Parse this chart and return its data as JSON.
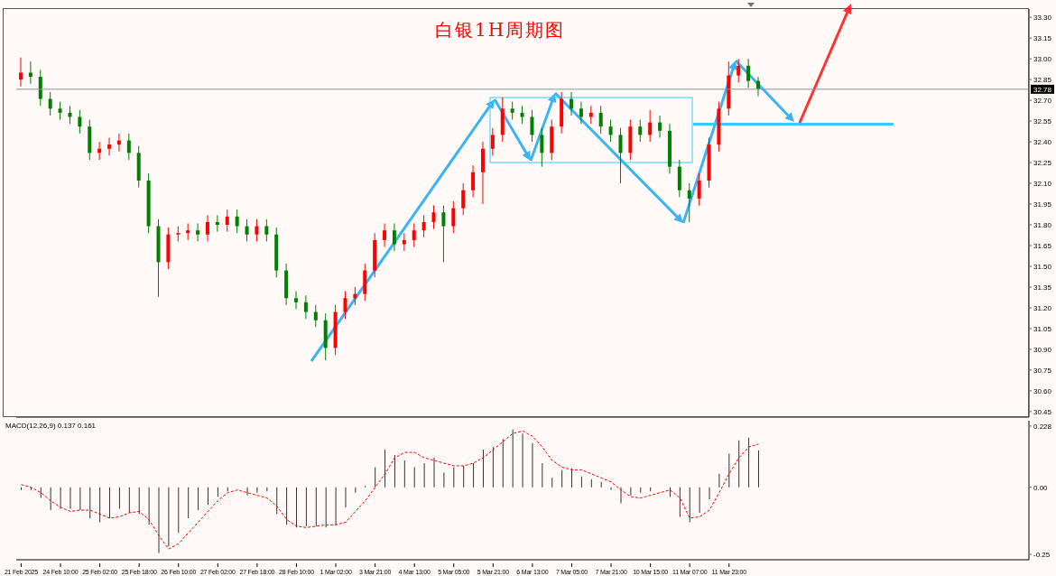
{
  "chart_data": [
    {
      "type": "candlestick",
      "title": "白银1H周期图",
      "categories": [
        null,
        null,
        null,
        null,
        null,
        null,
        null,
        null,
        null,
        null,
        null,
        null,
        null,
        null,
        null,
        null,
        null,
        null,
        null,
        null,
        null,
        null,
        null,
        null,
        null,
        null,
        null,
        null,
        null,
        null,
        null,
        null,
        null,
        null,
        null,
        null,
        null,
        null,
        null,
        null,
        null,
        null,
        null,
        null,
        null,
        null,
        null,
        null,
        null,
        null,
        null,
        null,
        null,
        null,
        null,
        null,
        null,
        null,
        null,
        null,
        null,
        null,
        null,
        null,
        null,
        null,
        null,
        null,
        null,
        null,
        null,
        null,
        null,
        null,
        null,
        null,
        null,
        null,
        null,
        null,
        null,
        null,
        null,
        null,
        null,
        null,
        null,
        null,
        null,
        null,
        null,
        null,
        null,
        null,
        null,
        null,
        null,
        null,
        null,
        null,
        null,
        null,
        null
      ],
      "ohlc": [
        [
          32.85,
          33.01,
          32.8,
          32.9
        ],
        [
          32.9,
          32.98,
          32.82,
          32.87
        ],
        [
          32.87,
          32.92,
          32.66,
          32.71
        ],
        [
          32.71,
          32.76,
          32.59,
          32.64
        ],
        [
          32.64,
          32.69,
          32.56,
          32.61
        ],
        [
          32.61,
          32.66,
          32.53,
          32.58
        ],
        [
          32.58,
          32.63,
          32.46,
          32.51
        ],
        [
          32.51,
          32.56,
          32.27,
          32.32
        ],
        [
          32.32,
          32.4,
          32.27,
          32.35
        ],
        [
          32.35,
          32.43,
          32.3,
          32.38
        ],
        [
          32.38,
          32.46,
          32.33,
          32.41
        ],
        [
          32.41,
          32.46,
          32.27,
          32.32
        ],
        [
          32.32,
          32.37,
          32.07,
          32.12
        ],
        [
          32.12,
          32.17,
          31.74,
          31.79
        ],
        [
          31.79,
          31.84,
          31.28,
          31.53
        ],
        [
          31.53,
          31.78,
          31.48,
          31.73
        ],
        [
          31.73,
          31.79,
          31.68,
          31.74
        ],
        [
          31.74,
          31.81,
          31.69,
          31.76
        ],
        [
          31.76,
          31.81,
          31.68,
          31.73
        ],
        [
          31.73,
          31.87,
          31.68,
          31.82
        ],
        [
          31.82,
          31.87,
          31.75,
          31.8
        ],
        [
          31.8,
          31.91,
          31.75,
          31.86
        ],
        [
          31.86,
          31.91,
          31.74,
          31.79
        ],
        [
          31.79,
          31.84,
          31.68,
          31.73
        ],
        [
          31.73,
          31.84,
          31.68,
          31.79
        ],
        [
          31.79,
          31.84,
          31.68,
          31.73
        ],
        [
          31.73,
          31.78,
          31.42,
          31.47
        ],
        [
          31.47,
          31.52,
          31.22,
          31.27
        ],
        [
          31.27,
          31.32,
          31.19,
          31.24
        ],
        [
          31.24,
          31.29,
          31.12,
          31.17
        ],
        [
          31.17,
          31.22,
          31.06,
          31.11
        ],
        [
          31.11,
          31.16,
          30.82,
          30.91
        ],
        [
          30.91,
          31.22,
          30.86,
          31.17
        ],
        [
          31.17,
          31.32,
          31.12,
          31.27
        ],
        [
          31.27,
          31.35,
          31.22,
          31.3
        ],
        [
          31.3,
          31.52,
          31.25,
          31.47
        ],
        [
          31.47,
          31.74,
          31.42,
          31.69
        ],
        [
          31.69,
          31.81,
          31.64,
          31.76
        ],
        [
          31.76,
          31.81,
          31.61,
          31.66
        ],
        [
          31.66,
          31.74,
          31.61,
          31.69
        ],
        [
          31.69,
          31.81,
          31.64,
          31.76
        ],
        [
          31.76,
          31.87,
          31.71,
          31.82
        ],
        [
          31.82,
          31.94,
          31.77,
          31.89
        ],
        [
          31.89,
          31.94,
          31.53,
          31.79
        ],
        [
          31.79,
          31.97,
          31.74,
          31.92
        ],
        [
          31.92,
          32.1,
          31.87,
          32.05
        ],
        [
          32.05,
          32.23,
          32.0,
          32.18
        ],
        [
          32.18,
          32.4,
          31.95,
          32.35
        ],
        [
          32.35,
          32.5,
          32.3,
          32.45
        ],
        [
          32.45,
          32.72,
          32.4,
          32.64
        ],
        [
          32.64,
          32.69,
          32.56,
          32.61
        ],
        [
          32.61,
          32.66,
          32.53,
          32.58
        ],
        [
          32.58,
          32.63,
          32.4,
          32.45
        ],
        [
          32.45,
          32.5,
          32.22,
          32.32
        ],
        [
          32.32,
          32.56,
          32.27,
          32.51
        ],
        [
          32.51,
          32.76,
          32.46,
          32.71
        ],
        [
          32.71,
          32.76,
          32.59,
          32.64
        ],
        [
          32.64,
          32.69,
          32.53,
          32.58
        ],
        [
          32.58,
          32.66,
          32.53,
          32.61
        ],
        [
          32.61,
          32.66,
          32.46,
          32.51
        ],
        [
          32.51,
          32.56,
          32.4,
          32.45
        ],
        [
          32.45,
          32.5,
          32.1,
          32.32
        ],
        [
          32.32,
          32.56,
          32.27,
          32.51
        ],
        [
          32.51,
          32.56,
          32.4,
          32.45
        ],
        [
          32.45,
          32.63,
          32.4,
          32.54
        ],
        [
          32.54,
          32.59,
          32.43,
          32.48
        ],
        [
          32.48,
          32.53,
          32.17,
          32.22
        ],
        [
          32.22,
          32.27,
          32.0,
          32.05
        ],
        [
          32.05,
          32.1,
          31.82,
          31.99
        ],
        [
          31.99,
          32.17,
          31.94,
          32.12
        ],
        [
          32.12,
          32.43,
          32.07,
          32.38
        ],
        [
          32.38,
          32.69,
          32.33,
          32.64
        ],
        [
          32.64,
          32.98,
          32.59,
          32.88
        ],
        [
          32.88,
          33.0,
          32.83,
          32.95
        ],
        [
          32.95,
          33.0,
          32.79,
          32.84
        ],
        [
          32.84,
          32.87,
          32.73,
          32.78
        ],
        null,
        null,
        null,
        null,
        null,
        null,
        null,
        null,
        null,
        null,
        null,
        null,
        null,
        null,
        null,
        null,
        null,
        null,
        null,
        null,
        null,
        null,
        null,
        null,
        null,
        null,
        null
      ],
      "colors": [
        "#ff0000",
        "#008000",
        "#008000",
        "#008000",
        "#008000",
        "#008000",
        "#008000",
        "#008000",
        "#ff0000",
        "#ff0000",
        "#ff0000",
        "#008000",
        "#008000",
        "#008000",
        "#008000",
        "#ff0000",
        "#ff0000",
        "#ff0000",
        "#008000",
        "#ff0000",
        "#008000",
        "#ff0000",
        "#008000",
        "#008000",
        "#ff0000",
        "#008000",
        "#008000",
        "#008000",
        "#008000",
        "#008000",
        "#008000",
        "#008000",
        "#ff0000",
        "#ff0000",
        "#ff0000",
        "#ff0000",
        "#ff0000",
        "#ff0000",
        "#008000",
        "#ff0000",
        "#ff0000",
        "#ff0000",
        "#ff0000",
        "#008000",
        "#ff0000",
        "#ff0000",
        "#ff0000",
        "#ff0000",
        "#ff0000",
        "#ff0000",
        "#008000",
        "#008000",
        "#008000",
        "#008000",
        "#ff0000",
        "#ff0000",
        "#008000",
        "#008000",
        "#ff0000",
        "#008000",
        "#008000",
        "#008000",
        "#ff0000",
        "#008000",
        "#ff0000",
        "#008000",
        "#008000",
        "#008000",
        "#008000",
        "#ff0000",
        "#ff0000",
        "#ff0000",
        "#ff0000",
        "#ff0000",
        "#008000",
        "#008000",
        null,
        null,
        null,
        null,
        null,
        null,
        null,
        null,
        null,
        null,
        null,
        null,
        null,
        null,
        null,
        null,
        null,
        null,
        null,
        null,
        null,
        null,
        null,
        null,
        null,
        null,
        null
      ],
      "ylim": [
        30.41,
        33.36
      ],
      "yticks": [
        {
          "value": 30.45,
          "label": "30.45"
        },
        {
          "value": 30.6,
          "label": "30.60"
        },
        {
          "value": 30.75,
          "label": "30.75"
        },
        {
          "value": 30.9,
          "label": "30.90"
        },
        {
          "value": 31.05,
          "label": "31.05"
        },
        {
          "value": 31.2,
          "label": "31.20"
        },
        {
          "value": 31.35,
          "label": "31.35"
        },
        {
          "value": 31.5,
          "label": "31.50"
        },
        {
          "value": 31.65,
          "label": "31.65"
        },
        {
          "value": 31.8,
          "label": "31.80"
        },
        {
          "value": 31.95,
          "label": "31.95"
        },
        {
          "value": 32.1,
          "label": "32.10"
        },
        {
          "value": 32.25,
          "label": "32.25"
        },
        {
          "value": 32.4,
          "label": "32.40"
        },
        {
          "value": 32.55,
          "label": "32.55"
        },
        {
          "value": 32.7,
          "label": "32.70"
        },
        {
          "value": 32.85,
          "label": "32.85"
        },
        {
          "value": 33,
          "label": "33.00"
        },
        {
          "value": 33.15,
          "label": "33.15"
        },
        {
          "value": 33.3,
          "label": "33.30"
        }
      ],
      "ref_lines": [
        {
          "axis": "y",
          "value": 32.78,
          "label": "32.78",
          "color": "#8a949c"
        }
      ],
      "tick_labels": "y"
    },
    {
      "type": "bar",
      "title": "MACD(12,26,9) 0.137 0.161",
      "categories": [
        "21 Feb 2025",
        null,
        null,
        null,
        "24 Feb 10:00",
        null,
        null,
        null,
        "25 Feb 02:00",
        null,
        null,
        null,
        "25 Feb 18:00",
        null,
        null,
        null,
        "26 Feb 10:00",
        null,
        null,
        null,
        "27 Feb 02:00",
        null,
        null,
        null,
        "27 Feb 18:00",
        null,
        null,
        null,
        "28 Feb 10:00",
        null,
        null,
        null,
        "1 Mar 02:00",
        null,
        null,
        null,
        "3 Mar 21:00",
        null,
        null,
        null,
        "4 Mar 13:00",
        null,
        null,
        null,
        "5 Mar 05:00",
        null,
        null,
        null,
        "5 Mar 21:00",
        null,
        null,
        null,
        "6 Mar 13:00",
        null,
        null,
        null,
        "7 Mar 05:00",
        null,
        null,
        null,
        "7 Mar 21:00",
        null,
        null,
        null,
        "10 Mar 15:00",
        null,
        null,
        null,
        "11 Mar 07:00",
        null,
        null,
        null,
        "11 Mar 23:00",
        null,
        null,
        null,
        null,
        null,
        null,
        null,
        null,
        null,
        null,
        null,
        null,
        null,
        null,
        null,
        null,
        null,
        null,
        null,
        null,
        null,
        null,
        null,
        null,
        null,
        null,
        null,
        null,
        null,
        null
      ],
      "series": [
        {
          "type": "bar",
          "color": "#333333",
          "values": [
            -0.01,
            -0.01,
            -0.04,
            -0.085,
            -0.08,
            -0.08,
            -0.085,
            -0.115,
            -0.13,
            -0.115,
            -0.08,
            -0.095,
            -0.1,
            -0.14,
            -0.245,
            -0.22,
            -0.17,
            -0.115,
            -0.085,
            -0.065,
            -0.035,
            -0.015,
            null,
            -0.03,
            -0.02,
            -0.015,
            -0.1,
            -0.14,
            -0.15,
            -0.145,
            -0.145,
            -0.15,
            -0.14,
            -0.075,
            -0.02,
            0.005,
            0.075,
            0.14,
            0.12,
            0.1,
            0.075,
            0.09,
            0.11,
            0.055,
            0.075,
            0.08,
            0.09,
            0.14,
            0.15,
            0.18,
            0.215,
            0.2,
            0.165,
            0.09,
            0.035,
            0.065,
            0.07,
            0.04,
            0.03,
            0.02,
            -0.01,
            -0.06,
            -0.03,
            -0.02,
            -0.015,
            0,
            -0.035,
            -0.11,
            -0.13,
            -0.095,
            -0.045,
            0.05,
            0.125,
            0.175,
            0.185,
            0.137,
            null,
            null,
            null,
            null,
            null,
            null,
            null,
            null,
            null,
            null,
            null,
            null,
            null,
            null,
            null,
            null,
            null,
            null,
            null,
            null,
            null,
            null,
            null,
            null,
            null,
            null,
            null
          ]
        },
        {
          "type": "line",
          "color": "#ff0000",
          "values": [
            0.01,
            0,
            -0.02,
            -0.05,
            -0.075,
            -0.09,
            -0.085,
            -0.085,
            -0.1,
            -0.115,
            -0.11,
            -0.095,
            -0.09,
            -0.12,
            -0.18,
            -0.23,
            -0.21,
            -0.17,
            -0.13,
            -0.09,
            -0.05,
            -0.02,
            -0.01,
            -0.02,
            -0.03,
            -0.04,
            -0.07,
            -0.12,
            -0.145,
            -0.15,
            -0.145,
            -0.14,
            -0.14,
            -0.13,
            -0.09,
            -0.05,
            0,
            0.05,
            0.11,
            0.13,
            0.13,
            0.11,
            0.1,
            0.09,
            0.08,
            0.08,
            0.09,
            0.11,
            0.14,
            0.17,
            0.2,
            0.21,
            0.19,
            0.15,
            0.1,
            0.075,
            0.065,
            0.065,
            0.05,
            0.035,
            0.02,
            -0.01,
            -0.035,
            -0.04,
            -0.03,
            -0.02,
            -0.01,
            -0.04,
            -0.115,
            -0.11,
            -0.085,
            -0.02,
            0.05,
            0.11,
            0.15,
            0.161,
            null,
            null,
            null,
            null,
            null,
            null,
            null,
            null,
            null,
            null,
            null,
            null,
            null,
            null,
            null,
            null,
            null,
            null,
            null,
            null,
            null,
            null,
            null,
            null,
            null,
            null,
            null
          ]
        }
      ],
      "ylim": [
        -0.27,
        0.248
      ],
      "yticks": [
        {
          "value": -0.25,
          "label": "-0.25"
        },
        {
          "value": 0,
          "label": "0.00"
        },
        {
          "value": 0.228,
          "label": "0.228"
        }
      ],
      "line_style": "dashed",
      "marker": "none"
    }
  ]
}
